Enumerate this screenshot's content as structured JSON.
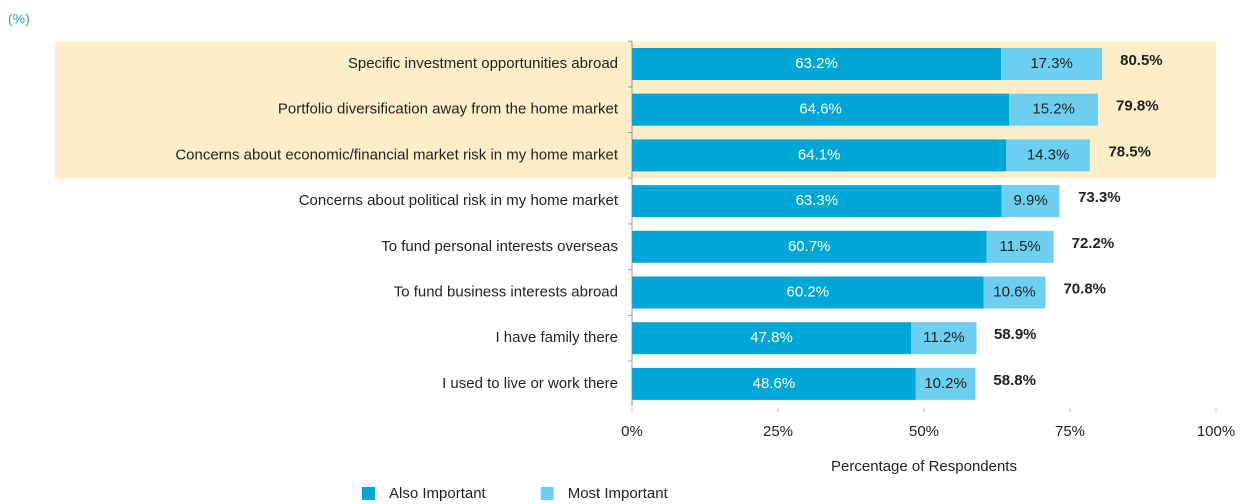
{
  "chart_data": {
    "type": "stacked_barh",
    "unit_label": "(%)",
    "xlabel": "Percentage of Respondents",
    "categories": [
      "Specific investment opportunities abroad",
      "Portfolio diversification away from the home market",
      "Concerns about economic/financial market risk in my home market",
      "Concerns about political risk in my home market",
      "To fund personal interests overseas",
      "To fund business interests abroad",
      "I have family there",
      "I used to live or work there"
    ],
    "series": [
      {
        "name": "Also Important",
        "color": "#00a6d6",
        "values": [
          63.2,
          64.6,
          64.1,
          63.3,
          60.7,
          60.2,
          47.8,
          48.6
        ],
        "value_labels": [
          "63.2%",
          "64.6%",
          "64.1%",
          "63.3%",
          "60.7%",
          "60.2%",
          "47.8%",
          "48.6%"
        ]
      },
      {
        "name": "Most Important",
        "color": "#6dcff0",
        "values": [
          17.3,
          15.2,
          14.3,
          9.9,
          11.5,
          10.6,
          11.2,
          10.2
        ],
        "value_labels": [
          "17.3%",
          "15.2%",
          "14.3%",
          "9.9%",
          "11.5%",
          "10.6%",
          "11.2%",
          "10.2%"
        ]
      }
    ],
    "totals": {
      "values": [
        80.5,
        79.8,
        78.5,
        73.3,
        72.2,
        70.8,
        58.9,
        58.8
      ],
      "value_labels": [
        "80.5%",
        "79.8%",
        "78.5%",
        "73.3%",
        "72.2%",
        "70.8%",
        "58.9%",
        "58.8%"
      ]
    },
    "highlight": {
      "color": "#fdeec8",
      "rows": [
        0,
        1,
        2
      ]
    },
    "xlim": [
      0,
      100
    ],
    "xticks": [
      {
        "value": 0,
        "label": "0%"
      },
      {
        "value": 25,
        "label": "25%"
      },
      {
        "value": 50,
        "label": "50%"
      },
      {
        "value": 75,
        "label": "75%"
      },
      {
        "value": 100,
        "label": "100%"
      }
    ],
    "legend": "bottom"
  }
}
